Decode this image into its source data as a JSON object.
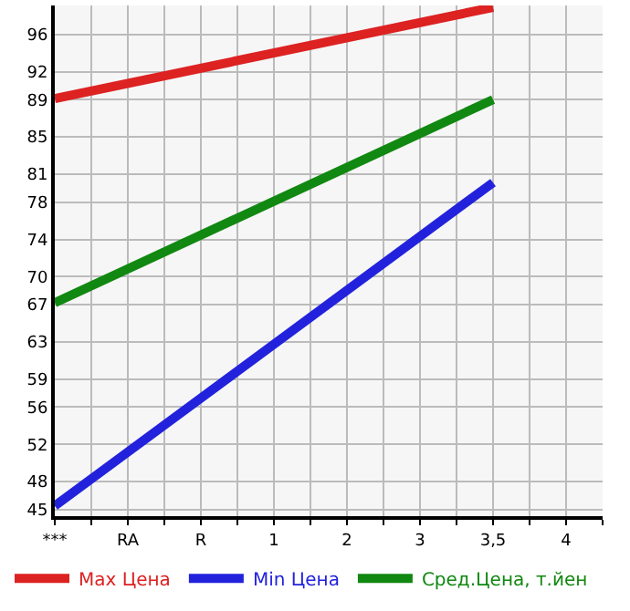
{
  "chart_data": {
    "type": "line",
    "categories": [
      "***",
      "RA",
      "R",
      "1",
      "2",
      "3",
      "3,5",
      "4"
    ],
    "series": [
      {
        "name": "Max Цена",
        "color": "#dd2222",
        "values": [
          89.1,
          null,
          null,
          null,
          null,
          null,
          98.9,
          null
        ]
      },
      {
        "name": "Min Цена",
        "color": "#2222dd",
        "values": [
          45.4,
          null,
          null,
          null,
          null,
          null,
          80.1,
          null
        ]
      },
      {
        "name": "Сред.Цена, т.йен",
        "color": "#118811",
        "values": [
          67.2,
          null,
          null,
          null,
          null,
          null,
          89.0,
          null
        ]
      }
    ],
    "ylim": [
      44.3,
      99.1
    ],
    "yticks": [
      45,
      48,
      52,
      56,
      59,
      63,
      67,
      70,
      74,
      78,
      81,
      85,
      89,
      92,
      96
    ],
    "grid": true,
    "legend": "bottom",
    "marker": "none",
    "line_style": "solid"
  }
}
